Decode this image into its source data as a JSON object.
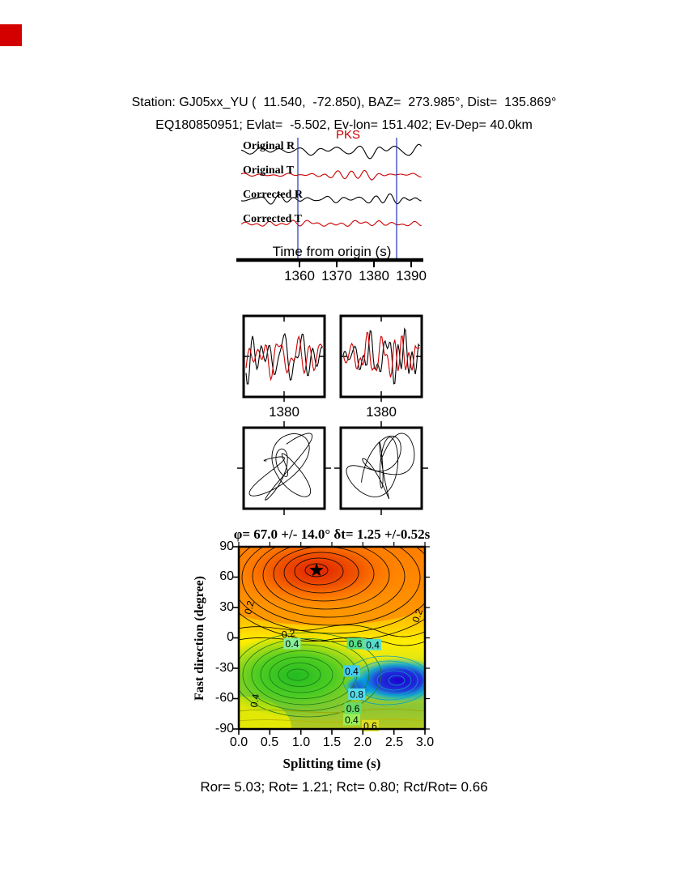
{
  "header": {
    "line1": "Station: GJ05xx_YU (  11.540,  -72.850), BAZ=  273.985°, Dist=  135.869°",
    "line2": "EQ180850951; Evlat=  -5.502, Ev-lon= 151.402; Ev-Dep= 40.0km"
  },
  "seismograms": {
    "phase_label": "PKS",
    "xlabel": "Time from origin (s)",
    "xticks": [
      "1360",
      "1370",
      "1380",
      "1390"
    ],
    "traces": [
      {
        "label": "Original R",
        "color": "#000000"
      },
      {
        "label": "Original T",
        "color": "#cc0000"
      },
      {
        "label": "Corrected R",
        "color": "#000000"
      },
      {
        "label": "Corrected T",
        "color": "#cc0000"
      }
    ]
  },
  "windows": {
    "ticks": [
      "1380",
      "1380"
    ]
  },
  "splitting": {
    "title": "φ= 67.0 +/- 14.0° δt= 1.25 +/-0.52s",
    "xlabel": "Splitting time (s)",
    "ylabel": "Fast direction (degree)",
    "xticks": [
      "0.0",
      "0.5",
      "1.0",
      "1.5",
      "2.0",
      "2.5",
      "3.0"
    ],
    "yticks": [
      "90",
      "60",
      "30",
      "0",
      "-30",
      "-60",
      "-90"
    ]
  },
  "footer": {
    "stats": "Ror= 5.03; Rot= 1.21; Rct= 0.80; Rct/Rot= 0.66"
  },
  "colors": {
    "radial_trace": "#000000",
    "transverse_trace": "#cc0000",
    "window_marker": "#2233bb",
    "phase_label": "#c40000",
    "corner_mark": "#d40000"
  },
  "chart_data": [
    {
      "type": "line",
      "panel": "seismogram-traces",
      "xlabel": "Time from origin (s)",
      "x_ticks": [
        1360,
        1370,
        1380,
        1390
      ],
      "series": [
        {
          "name": "Original R",
          "color": "#000000"
        },
        {
          "name": "Original T",
          "color": "#cc0000"
        },
        {
          "name": "Corrected R",
          "color": "#000000"
        },
        {
          "name": "Corrected T",
          "color": "#cc0000"
        }
      ],
      "phase": "PKS",
      "window_marker_count": 2
    },
    {
      "type": "line",
      "panel": "window-waveforms",
      "x_ticks": [
        1380,
        1380
      ],
      "note": "radial (black) and transverse (red) waveform overlays in two analysis windows"
    },
    {
      "type": "scatter",
      "panel": "particle-motion",
      "note": "two particle-motion hodograms, uncorrected and corrected"
    },
    {
      "type": "heatmap",
      "panel": "splitting-energy-map",
      "title": "φ= 67.0 +/- 14.0° δt= 1.25 +/-0.52s",
      "xlabel": "Splitting time (s)",
      "ylabel": "Fast direction (degree)",
      "xlim": [
        0.0,
        3.0
      ],
      "ylim": [
        -90,
        90
      ],
      "x_ticks": [
        0.0,
        0.5,
        1.0,
        1.5,
        2.0,
        2.5,
        3.0
      ],
      "y_ticks": [
        90,
        60,
        30,
        0,
        -30,
        -60,
        -90
      ],
      "best_solution": {
        "phi_deg": 67.0,
        "phi_err_deg": 14.0,
        "dt_s": 1.25,
        "dt_err_s": 0.52
      },
      "annotations": [
        {
          "t": "0.2",
          "x": 0.17,
          "y": 30,
          "rot": -75,
          "bg": "none"
        },
        {
          "t": "0.2",
          "x": 0.8,
          "y": 4,
          "rot": -8,
          "bg": "none"
        },
        {
          "t": "0.2",
          "x": 2.88,
          "y": 22,
          "rot": -70,
          "bg": "none"
        },
        {
          "t": "0.6",
          "x": 1.88,
          "y": -6,
          "rot": 0,
          "bg": "#55dd88"
        },
        {
          "t": "0.4",
          "x": 2.16,
          "y": -7,
          "rot": 0,
          "bg": "#55ddcc"
        },
        {
          "t": "0.4",
          "x": 0.86,
          "y": -6,
          "rot": 0,
          "bg": "#88ee99"
        },
        {
          "t": "0.4",
          "x": 1.82,
          "y": -33,
          "rot": 0,
          "bg": "#44ccee"
        },
        {
          "t": "0.8",
          "x": 1.9,
          "y": -56,
          "rot": 0,
          "bg": "#55ddee"
        },
        {
          "t": "0.6",
          "x": 1.84,
          "y": -70,
          "rot": 0,
          "bg": "#66dd66"
        },
        {
          "t": "0.4",
          "x": 1.82,
          "y": -81,
          "rot": 0,
          "bg": "#99ee55"
        },
        {
          "t": "0.6",
          "x": 2.12,
          "y": -87,
          "rot": 0,
          "bg": "#dddd22"
        },
        {
          "t": "0.4",
          "x": 0.26,
          "y": -62,
          "rot": -80,
          "bg": "none"
        }
      ]
    }
  ],
  "stats_values": {
    "Ror": 5.03,
    "Rot": 1.21,
    "Rct": 0.8,
    "Rct_over_Rot": 0.66
  }
}
